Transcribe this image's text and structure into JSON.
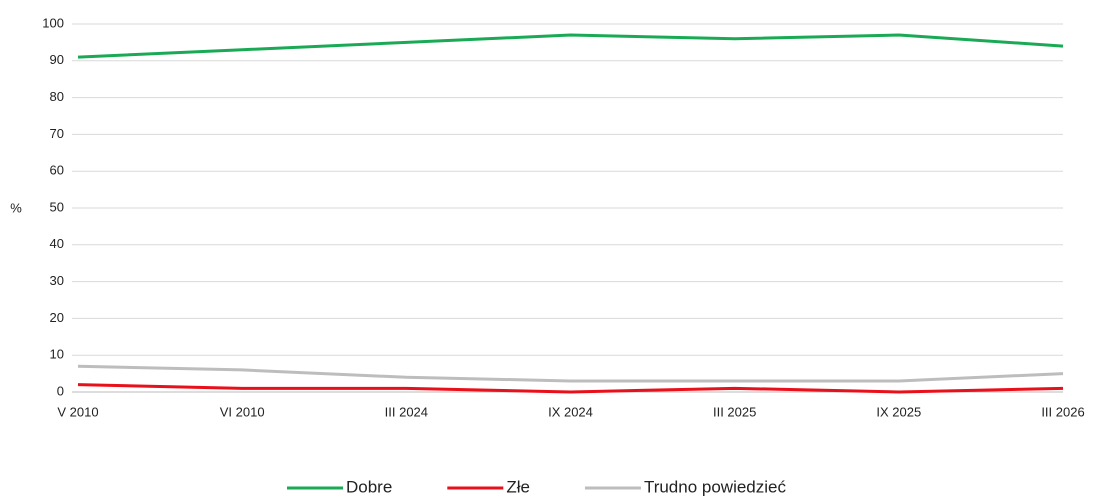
{
  "chart_data": {
    "type": "line",
    "y_label": "%",
    "categories": [
      "V 2010",
      "VI 2010",
      "III 2024",
      "IX 2024",
      "III 2025",
      "IX 2025",
      "III 2026"
    ],
    "series": [
      {
        "name": "Dobre",
        "color": "#1aaa55",
        "values": [
          91,
          93,
          95,
          97,
          96,
          97,
          94
        ]
      },
      {
        "name": "Złe",
        "color": "#e8101a",
        "values": [
          2,
          1,
          1,
          0,
          1,
          0,
          1
        ]
      },
      {
        "name": "Trudno powiedzieć",
        "color": "#bdbdbd",
        "values": [
          7,
          6,
          4,
          3,
          3,
          3,
          5
        ]
      }
    ],
    "ylim": [
      0,
      100
    ],
    "yticks": [
      0,
      10,
      20,
      30,
      40,
      50,
      60,
      70,
      80,
      90,
      100
    ],
    "grid": true,
    "legend": "bottom"
  }
}
